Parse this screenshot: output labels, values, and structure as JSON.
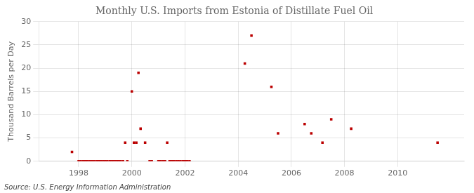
{
  "chart_data": {
    "type": "scatter",
    "title": "Monthly U.S. Imports from Estonia of Distillate Fuel Oil",
    "ylabel": "Thousand Barrels per Day",
    "source": "Source: U.S. Energy Information Administration",
    "color": "#bb0000",
    "marker": "square",
    "grid": true,
    "xlim": [
      1996.5,
      2012.5
    ],
    "ylim": [
      0,
      30
    ],
    "xticks": [
      1998,
      2000,
      2002,
      2004,
      2006,
      2008,
      2010
    ],
    "yticks": [
      0,
      5,
      10,
      15,
      20,
      25,
      30
    ],
    "x": [
      1997.75,
      1998.0,
      1998.08,
      1998.17,
      1998.25,
      1998.33,
      1998.42,
      1998.5,
      1998.58,
      1998.67,
      1998.75,
      1998.83,
      1998.92,
      1999.0,
      1999.08,
      1999.17,
      1999.25,
      1999.33,
      1999.42,
      1999.5,
      1999.58,
      1999.67,
      1999.75,
      1999.83,
      2000.0,
      2000.08,
      2000.17,
      2000.25,
      2000.33,
      2000.5,
      2000.67,
      2000.75,
      2001.0,
      2001.08,
      2001.17,
      2001.25,
      2001.33,
      2001.42,
      2001.5,
      2001.58,
      2001.67,
      2001.75,
      2001.83,
      2001.92,
      2002.0,
      2002.08,
      2002.17,
      2004.25,
      2004.5,
      2005.25,
      2005.5,
      2006.5,
      2006.75,
      2007.17,
      2007.5,
      2008.25,
      2011.5
    ],
    "values": [
      2,
      0,
      0,
      0,
      0,
      0,
      0,
      0,
      0,
      0,
      0,
      0,
      0,
      0,
      0,
      0,
      0,
      0,
      0,
      0,
      0,
      0,
      4,
      0,
      15,
      4,
      4,
      19,
      7,
      4,
      0,
      0,
      0,
      0,
      0,
      0,
      4,
      0,
      0,
      0,
      0,
      0,
      0,
      0,
      0,
      0,
      0,
      21,
      27,
      16,
      6,
      8,
      6,
      4,
      9,
      7,
      4
    ]
  }
}
